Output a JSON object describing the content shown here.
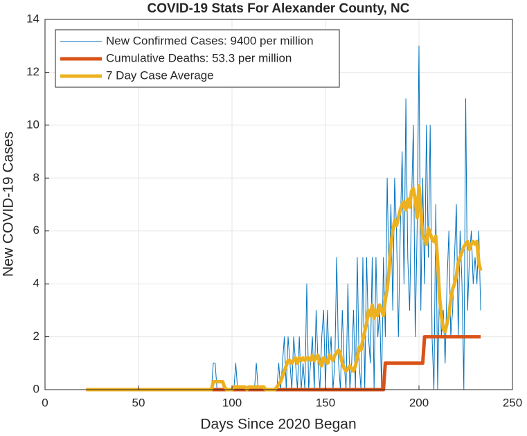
{
  "chart_data": {
    "type": "line",
    "title": "COVID-19 Stats For Alexander County, NC",
    "xlabel": "Days Since 2020 Began",
    "ylabel": "New COVID-19 Cases",
    "xlim": [
      0,
      250
    ],
    "xticks": [
      0,
      50,
      100,
      150,
      200,
      250
    ],
    "ylim": [
      0,
      14
    ],
    "yticks": [
      0,
      2,
      4,
      6,
      8,
      10,
      12,
      14
    ],
    "grid": true,
    "legend": "upper-left",
    "x": [
      22,
      23,
      24,
      25,
      26,
      27,
      28,
      29,
      30,
      31,
      32,
      33,
      34,
      35,
      36,
      37,
      38,
      39,
      40,
      41,
      42,
      43,
      44,
      45,
      46,
      47,
      48,
      49,
      50,
      51,
      52,
      53,
      54,
      55,
      56,
      57,
      58,
      59,
      60,
      61,
      62,
      63,
      64,
      65,
      66,
      67,
      68,
      69,
      70,
      71,
      72,
      73,
      74,
      75,
      76,
      77,
      78,
      79,
      80,
      81,
      82,
      83,
      84,
      85,
      86,
      87,
      88,
      89,
      90,
      91,
      92,
      93,
      94,
      95,
      96,
      97,
      98,
      99,
      100,
      101,
      102,
      103,
      104,
      105,
      106,
      107,
      108,
      109,
      110,
      111,
      112,
      113,
      114,
      115,
      116,
      117,
      118,
      119,
      120,
      121,
      122,
      123,
      124,
      125,
      126,
      127,
      128,
      129,
      130,
      131,
      132,
      133,
      134,
      135,
      136,
      137,
      138,
      139,
      140,
      141,
      142,
      143,
      144,
      145,
      146,
      147,
      148,
      149,
      150,
      151,
      152,
      153,
      154,
      155,
      156,
      157,
      158,
      159,
      160,
      161,
      162,
      163,
      164,
      165,
      166,
      167,
      168,
      169,
      170,
      171,
      172,
      173,
      174,
      175,
      176,
      177,
      178,
      179,
      180,
      181,
      182,
      183,
      184,
      185,
      186,
      187,
      188,
      189,
      190,
      191,
      192,
      193,
      194,
      195,
      196,
      197,
      198,
      199,
      200,
      201,
      202,
      203,
      204,
      205,
      206,
      207,
      208,
      209,
      210,
      211,
      212,
      213,
      214,
      215,
      216,
      217,
      218,
      219,
      220,
      221,
      222,
      223,
      224,
      225,
      226,
      227,
      228,
      229,
      230,
      231,
      232,
      233
    ],
    "series": [
      {
        "name": "New Confirmed Cases: 9400 per million",
        "color": "#0072BD",
        "width": 1,
        "values": [
          0,
          0,
          0,
          0,
          0,
          0,
          0,
          0,
          0,
          0,
          0,
          0,
          0,
          0,
          0,
          0,
          0,
          0,
          0,
          0,
          0,
          0,
          0,
          0,
          0,
          0,
          0,
          0,
          0,
          0,
          0,
          0,
          0,
          0,
          0,
          0,
          0,
          0,
          0,
          0,
          0,
          0,
          0,
          0,
          0,
          0,
          0,
          0,
          0,
          0,
          0,
          0,
          0,
          0,
          0,
          0,
          0,
          0,
          0,
          0,
          0,
          0,
          0,
          0,
          0,
          0,
          0,
          0,
          1,
          1,
          0,
          0,
          0,
          0,
          0,
          0,
          0,
          0,
          0,
          0,
          1,
          0,
          0,
          0,
          0,
          0,
          0,
          0,
          0,
          0,
          0,
          1,
          0,
          0,
          0,
          0,
          0,
          0,
          0,
          0,
          0,
          0,
          0,
          1,
          0,
          1,
          2,
          0,
          2,
          1,
          0,
          2,
          1,
          0,
          2,
          0,
          1,
          0,
          4,
          0,
          1,
          2,
          0,
          3,
          1,
          0,
          2,
          3,
          0,
          3,
          1,
          2,
          0,
          1,
          5,
          1,
          0,
          3,
          1,
          0,
          4,
          0,
          1,
          3,
          0,
          5,
          1,
          0,
          5,
          0,
          5,
          2,
          1,
          5,
          0,
          5,
          2,
          3,
          0,
          5,
          2,
          8,
          4,
          7,
          3,
          8,
          6,
          2,
          6,
          9,
          4,
          11,
          5,
          3,
          7,
          10,
          2,
          6,
          13,
          3,
          8,
          4,
          10,
          5,
          10,
          2,
          0,
          7,
          0,
          4,
          2,
          3,
          1,
          4,
          6,
          2,
          3,
          5,
          7,
          2,
          6,
          4,
          0,
          11,
          3,
          5,
          6,
          4,
          5,
          4,
          6,
          3
        ]
      },
      {
        "name": "Cumulative Deaths: 53.3 per million",
        "color": "#D95319",
        "width": 5,
        "values": [
          0,
          0,
          0,
          0,
          0,
          0,
          0,
          0,
          0,
          0,
          0,
          0,
          0,
          0,
          0,
          0,
          0,
          0,
          0,
          0,
          0,
          0,
          0,
          0,
          0,
          0,
          0,
          0,
          0,
          0,
          0,
          0,
          0,
          0,
          0,
          0,
          0,
          0,
          0,
          0,
          0,
          0,
          0,
          0,
          0,
          0,
          0,
          0,
          0,
          0,
          0,
          0,
          0,
          0,
          0,
          0,
          0,
          0,
          0,
          0,
          0,
          0,
          0,
          0,
          0,
          0,
          0,
          0,
          0,
          0,
          0,
          0,
          0,
          0,
          0,
          0,
          0,
          0,
          0,
          0,
          0,
          0,
          0,
          0,
          0,
          0,
          0,
          0,
          0,
          0,
          0,
          0,
          0,
          0,
          0,
          0,
          0,
          0,
          0,
          0,
          0,
          0,
          0,
          0,
          0,
          0,
          0,
          0,
          0,
          0,
          0,
          0,
          0,
          0,
          0,
          0,
          0,
          0,
          0,
          0,
          0,
          0,
          0,
          0,
          0,
          0,
          0,
          0,
          0,
          0,
          0,
          0,
          0,
          0,
          0,
          0,
          0,
          0,
          0,
          0,
          0,
          0,
          0,
          0,
          0,
          0,
          0,
          0,
          0,
          0,
          0,
          0,
          0,
          0,
          0,
          0,
          0,
          0,
          0,
          0,
          1,
          1,
          1,
          1,
          1,
          1,
          1,
          1,
          1,
          1,
          1,
          1,
          1,
          1,
          1,
          1,
          1,
          1,
          1,
          1,
          1,
          2,
          2,
          2,
          2,
          2,
          2,
          2,
          2,
          2,
          2,
          2,
          2,
          2,
          2,
          2,
          2,
          2,
          2,
          2,
          2,
          2,
          2,
          2,
          2,
          2,
          2,
          2,
          2,
          2,
          2,
          2
        ]
      },
      {
        "name": "7 Day Case Average",
        "color": "#EDB120",
        "width": 5,
        "values": [
          0,
          0,
          0,
          0,
          0,
          0,
          0,
          0,
          0,
          0,
          0,
          0,
          0,
          0,
          0,
          0,
          0,
          0,
          0,
          0,
          0,
          0,
          0,
          0,
          0,
          0,
          0,
          0,
          0,
          0,
          0,
          0,
          0,
          0,
          0,
          0,
          0,
          0,
          0,
          0,
          0,
          0,
          0,
          0,
          0,
          0,
          0,
          0,
          0,
          0,
          0,
          0,
          0,
          0,
          0,
          0,
          0,
          0,
          0,
          0,
          0,
          0,
          0,
          0,
          0,
          0,
          0,
          0,
          0.3,
          0.3,
          0.3,
          0.3,
          0.3,
          0.3,
          0.1,
          0,
          0,
          0,
          0,
          0.1,
          0.1,
          0.1,
          0.1,
          0.1,
          0.1,
          0.1,
          0,
          0.1,
          0.1,
          0.1,
          0.1,
          0.1,
          0.1,
          0.1,
          0.1,
          0.1,
          0,
          0,
          0,
          0,
          0,
          0,
          0.1,
          0.2,
          0.3,
          0.5,
          0.7,
          0.9,
          1.1,
          1.1,
          1,
          1.1,
          1.2,
          1,
          1.2,
          1.1,
          1.2,
          1.1,
          1.2,
          1.2,
          1.1,
          1.3,
          1.1,
          1.2,
          1.3,
          1,
          0.9,
          1.2,
          1.1,
          1,
          1.3,
          1.2,
          1.1,
          1.3,
          1.4,
          1.5,
          1.3,
          1,
          0.8,
          0.7,
          0.8,
          0.9,
          0.8,
          0.7,
          0.9,
          1.2,
          1.6,
          1.5,
          1.9,
          2.2,
          2.5,
          3,
          2.8,
          3.2,
          2.7,
          3,
          2.8,
          3.2,
          3,
          2.8,
          3.4,
          3.8,
          4.5,
          5.5,
          6,
          6.4,
          6.2,
          6.5,
          6.8,
          7,
          7.1,
          6.8,
          7.2,
          6.9,
          7.5,
          7.6,
          7.2,
          6.5,
          7.7,
          6.8,
          5.8,
          5.7,
          5.5,
          6.1,
          5.9,
          5.7,
          5.6,
          5.8,
          4.8,
          3.5,
          2.8,
          2.3,
          2.2,
          2.5,
          2.8,
          3.4,
          3.8,
          4,
          4.3,
          4.8,
          5,
          5.2,
          5.4,
          5.5,
          5.6,
          5.3,
          5.5,
          5.6,
          5.5,
          5.6,
          4.8,
          4.5
        ]
      }
    ]
  }
}
